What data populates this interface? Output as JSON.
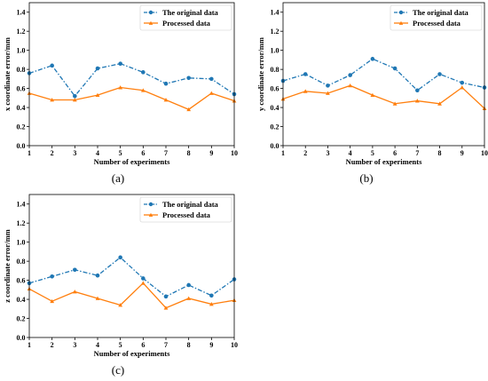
{
  "colors": {
    "original": "#1f77b4",
    "processed": "#ff7f0e"
  },
  "chart_data": [
    {
      "type": "line",
      "caption": "(a)",
      "xlabel": "Number of experiments",
      "ylabel": "x coordinate error/mm",
      "xlim": [
        1,
        10
      ],
      "ylim": [
        0,
        1.5
      ],
      "x_ticks": [
        "1",
        "2",
        "3",
        "4",
        "5",
        "6",
        "7",
        "8",
        "9",
        "10"
      ],
      "y_ticks": [
        "0.0",
        "0.2",
        "0.4",
        "0.6",
        "0.8",
        "1.0",
        "1.2",
        "1.4"
      ],
      "legend_position": "top-right",
      "grid": false,
      "x": [
        1,
        2,
        3,
        4,
        5,
        6,
        7,
        8,
        9,
        10
      ],
      "series": [
        {
          "name": "The original data",
          "style": "dashdot-circle",
          "values": [
            0.76,
            0.84,
            0.52,
            0.81,
            0.86,
            0.77,
            0.65,
            0.71,
            0.7,
            0.54
          ]
        },
        {
          "name": "Processed data",
          "style": "solid-triangle",
          "values": [
            0.55,
            0.48,
            0.48,
            0.53,
            0.61,
            0.58,
            0.48,
            0.38,
            0.55,
            0.47
          ]
        }
      ]
    },
    {
      "type": "line",
      "caption": "(b)",
      "xlabel": "Number of experiments",
      "ylabel": "y coordinate error/mm",
      "xlim": [
        1,
        10
      ],
      "ylim": [
        0,
        1.5
      ],
      "x_ticks": [
        "1",
        "2",
        "3",
        "4",
        "5",
        "6",
        "7",
        "8",
        "9",
        "10"
      ],
      "y_ticks": [
        "0.0",
        "0.2",
        "0.4",
        "0.6",
        "0.8",
        "1.0",
        "1.2",
        "1.4"
      ],
      "legend_position": "top-right",
      "grid": false,
      "x": [
        1,
        2,
        3,
        4,
        5,
        6,
        7,
        8,
        9,
        10
      ],
      "series": [
        {
          "name": "The original data",
          "style": "dashdot-circle",
          "values": [
            0.68,
            0.75,
            0.63,
            0.74,
            0.91,
            0.81,
            0.58,
            0.75,
            0.66,
            0.61
          ]
        },
        {
          "name": "Processed data",
          "style": "solid-triangle",
          "values": [
            0.49,
            0.57,
            0.55,
            0.63,
            0.53,
            0.44,
            0.47,
            0.44,
            0.61,
            0.39
          ]
        }
      ]
    },
    {
      "type": "line",
      "caption": "(c)",
      "xlabel": "Number of experiments",
      "ylabel": "z coordinate error/mm",
      "xlim": [
        1,
        10
      ],
      "ylim": [
        0,
        1.5
      ],
      "x_ticks": [
        "1",
        "2",
        "3",
        "4",
        "5",
        "6",
        "7",
        "8",
        "9",
        "10"
      ],
      "y_ticks": [
        "0.0",
        "0.2",
        "0.4",
        "0.6",
        "0.8",
        "1.0",
        "1.2",
        "1.4"
      ],
      "legend_position": "top-right",
      "grid": false,
      "x": [
        1,
        2,
        3,
        4,
        5,
        6,
        7,
        8,
        9,
        10
      ],
      "series": [
        {
          "name": "The original data",
          "style": "dashdot-circle",
          "values": [
            0.57,
            0.64,
            0.71,
            0.65,
            0.84,
            0.62,
            0.43,
            0.55,
            0.44,
            0.61
          ]
        },
        {
          "name": "Processed data",
          "style": "solid-triangle",
          "values": [
            0.51,
            0.38,
            0.48,
            0.41,
            0.34,
            0.57,
            0.31,
            0.41,
            0.35,
            0.39
          ]
        }
      ]
    }
  ]
}
